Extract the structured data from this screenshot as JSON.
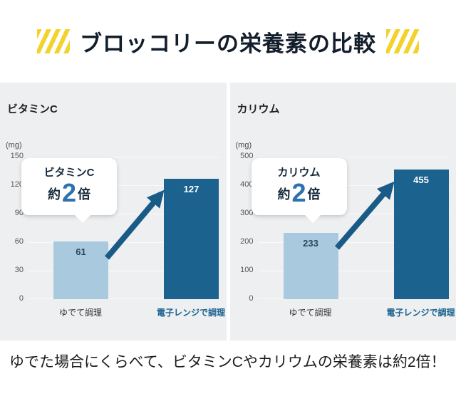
{
  "title": "ブロッコリーの栄養素の比較",
  "footer": {
    "text": "ゆでた場合にくらべて、ビタミンCやカリウムの栄養素は約2倍！"
  },
  "colors": {
    "stripe_yellow": "#f4d22c",
    "chart_background": "#edeff1",
    "bar_light_blue": "#a9cade",
    "bar_dark_blue": "#1b628f",
    "accent_blue": "#2d72ae",
    "arrow_blue": "#195a87",
    "title_color": "#131e2b"
  },
  "chart_data": [
    {
      "type": "bar",
      "title": "ビタミンC",
      "unit": "(mg)",
      "categories": [
        "ゆでて調理",
        "電子レンジで調理"
      ],
      "values": [
        61,
        127
      ],
      "ylim": [
        0,
        150
      ],
      "yticks": [
        150,
        120,
        90,
        60,
        30,
        0
      ],
      "grid": true,
      "legend": "none",
      "callout": {
        "name": "ビタミンC",
        "approx": "約",
        "multiplier": "2",
        "times": "倍"
      }
    },
    {
      "type": "bar",
      "title": "カリウム",
      "unit": "(mg)",
      "categories": [
        "ゆでて調理",
        "電子レンジで調理"
      ],
      "values": [
        233,
        455
      ],
      "ylim": [
        0,
        500
      ],
      "yticks": [
        500,
        400,
        300,
        200,
        100,
        0
      ],
      "grid": true,
      "legend": "none",
      "callout": {
        "name": "カリウム",
        "approx": "約",
        "multiplier": "2",
        "times": "倍"
      }
    }
  ]
}
